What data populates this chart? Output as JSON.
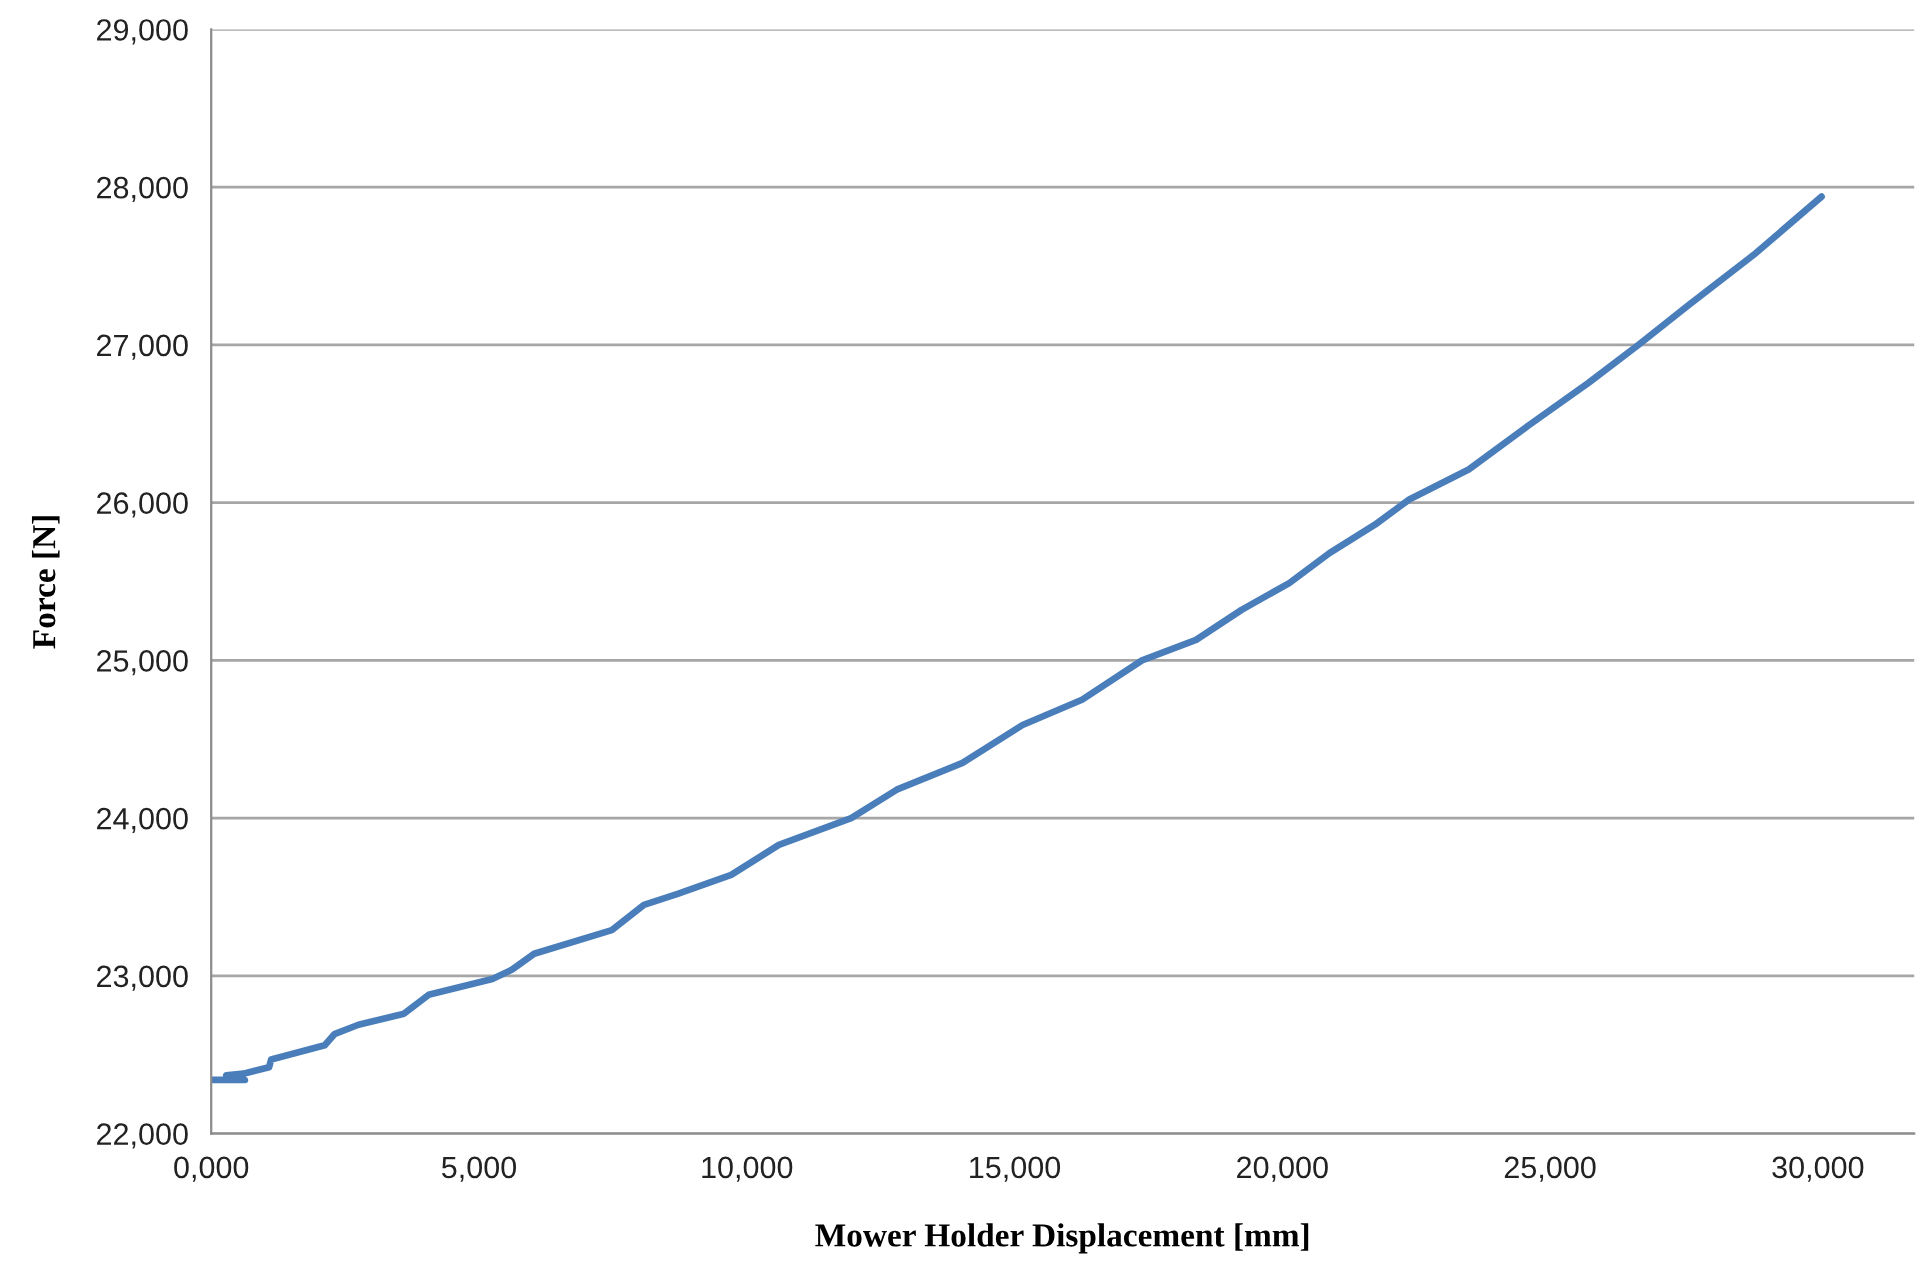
{
  "chart_data": {
    "type": "line",
    "xlabel": "Mower Holder Displacement [mm]",
    "ylabel": "Force [N]",
    "series": [
      {
        "color": "#4a7ebb",
        "x": [
          0,
          630,
          280,
          600,
          1080,
          1120,
          2120,
          2300,
          2750,
          3600,
          4060,
          5250,
          5620,
          6030,
          7480,
          8080,
          8710,
          9710,
          10600,
          11950,
          12800,
          14030,
          15150,
          16260,
          17380,
          18390,
          19240,
          20130,
          20880,
          21730,
          22370,
          23480,
          24600,
          25720,
          26650,
          27580,
          28800,
          30070
        ],
        "values": [
          22340,
          22340,
          22370,
          22380,
          22420,
          22470,
          22560,
          22630,
          22690,
          22760,
          22880,
          22980,
          23040,
          23140,
          23290,
          23450,
          23520,
          23640,
          23830,
          24000,
          24180,
          24350,
          24590,
          24750,
          25000,
          25130,
          25320,
          25490,
          25680,
          25860,
          26020,
          26210,
          26490,
          26760,
          27000,
          27250,
          27570,
          27940
        ]
      }
    ],
    "xlim": [
      0,
      31800
    ],
    "xticks": [
      {
        "value": 0,
        "label": "0,000"
      },
      {
        "value": 5000,
        "label": "5,000"
      },
      {
        "value": 10000,
        "label": "10,000"
      },
      {
        "value": 15000,
        "label": "15,000"
      },
      {
        "value": 20000,
        "label": "20,000"
      },
      {
        "value": 25000,
        "label": "25,000"
      },
      {
        "value": 30000,
        "label": "30,000"
      }
    ],
    "ylim": [
      22000,
      29000
    ],
    "yticks": [
      {
        "value": 22000,
        "label": "22,000"
      },
      {
        "value": 23000,
        "label": "23,000"
      },
      {
        "value": 24000,
        "label": "24,000"
      },
      {
        "value": 25000,
        "label": "25,000"
      },
      {
        "value": 26000,
        "label": "26,000"
      },
      {
        "value": 27000,
        "label": "27,000"
      },
      {
        "value": 28000,
        "label": "28,000"
      },
      {
        "value": 29000,
        "label": "29,000"
      }
    ],
    "grid": "y",
    "marker": "none",
    "line_style": "solid"
  }
}
